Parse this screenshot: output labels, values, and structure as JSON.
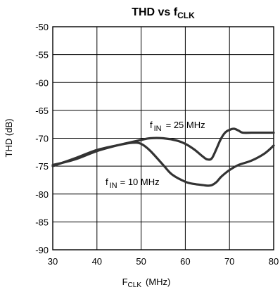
{
  "chart_data": {
    "type": "line",
    "title": {
      "main": "THD vs f",
      "sub": "CLK"
    },
    "xlabel": {
      "main": "F",
      "sub": "CLK",
      "suffix": "(MHz)"
    },
    "ylabel": "THD (dB)",
    "xlim": [
      30,
      80
    ],
    "ylim": [
      -90,
      -50
    ],
    "xticks": [
      30,
      40,
      50,
      60,
      70,
      80
    ],
    "yticks": [
      -50,
      -55,
      -60,
      -65,
      -70,
      -75,
      -80,
      -85,
      -90
    ],
    "grid": true,
    "series": [
      {
        "label": {
          "pre": "f",
          "sub": "IN",
          "post": "= 25 MHz"
        },
        "x": [
          30,
          35,
          40,
          45,
          50,
          52,
          55,
          58,
          60,
          62,
          64,
          65,
          66,
          67,
          68,
          69,
          70,
          71,
          72,
          73,
          75,
          80
        ],
        "y": [
          -74.8,
          -73.8,
          -72.3,
          -71.2,
          -70.3,
          -70.0,
          -70.0,
          -70.4,
          -71.0,
          -72.0,
          -73.3,
          -73.8,
          -73.6,
          -72.0,
          -70.2,
          -69.0,
          -68.5,
          -68.3,
          -68.6,
          -69.0,
          -69.0,
          -69.0
        ]
      },
      {
        "label": {
          "pre": "f",
          "sub": "IN",
          "post": "= 10 MHz"
        },
        "x": [
          30,
          35,
          40,
          45,
          48,
          50,
          52,
          55,
          57,
          60,
          62,
          64,
          65,
          66,
          67,
          68,
          69,
          70,
          72,
          75,
          78,
          80
        ],
        "y": [
          -75.0,
          -73.6,
          -72.1,
          -71.2,
          -70.8,
          -71.0,
          -72.2,
          -74.8,
          -76.5,
          -77.8,
          -78.2,
          -78.4,
          -78.5,
          -78.4,
          -77.9,
          -77.0,
          -76.3,
          -75.7,
          -74.8,
          -74.0,
          -72.7,
          -71.3
        ]
      }
    ]
  }
}
